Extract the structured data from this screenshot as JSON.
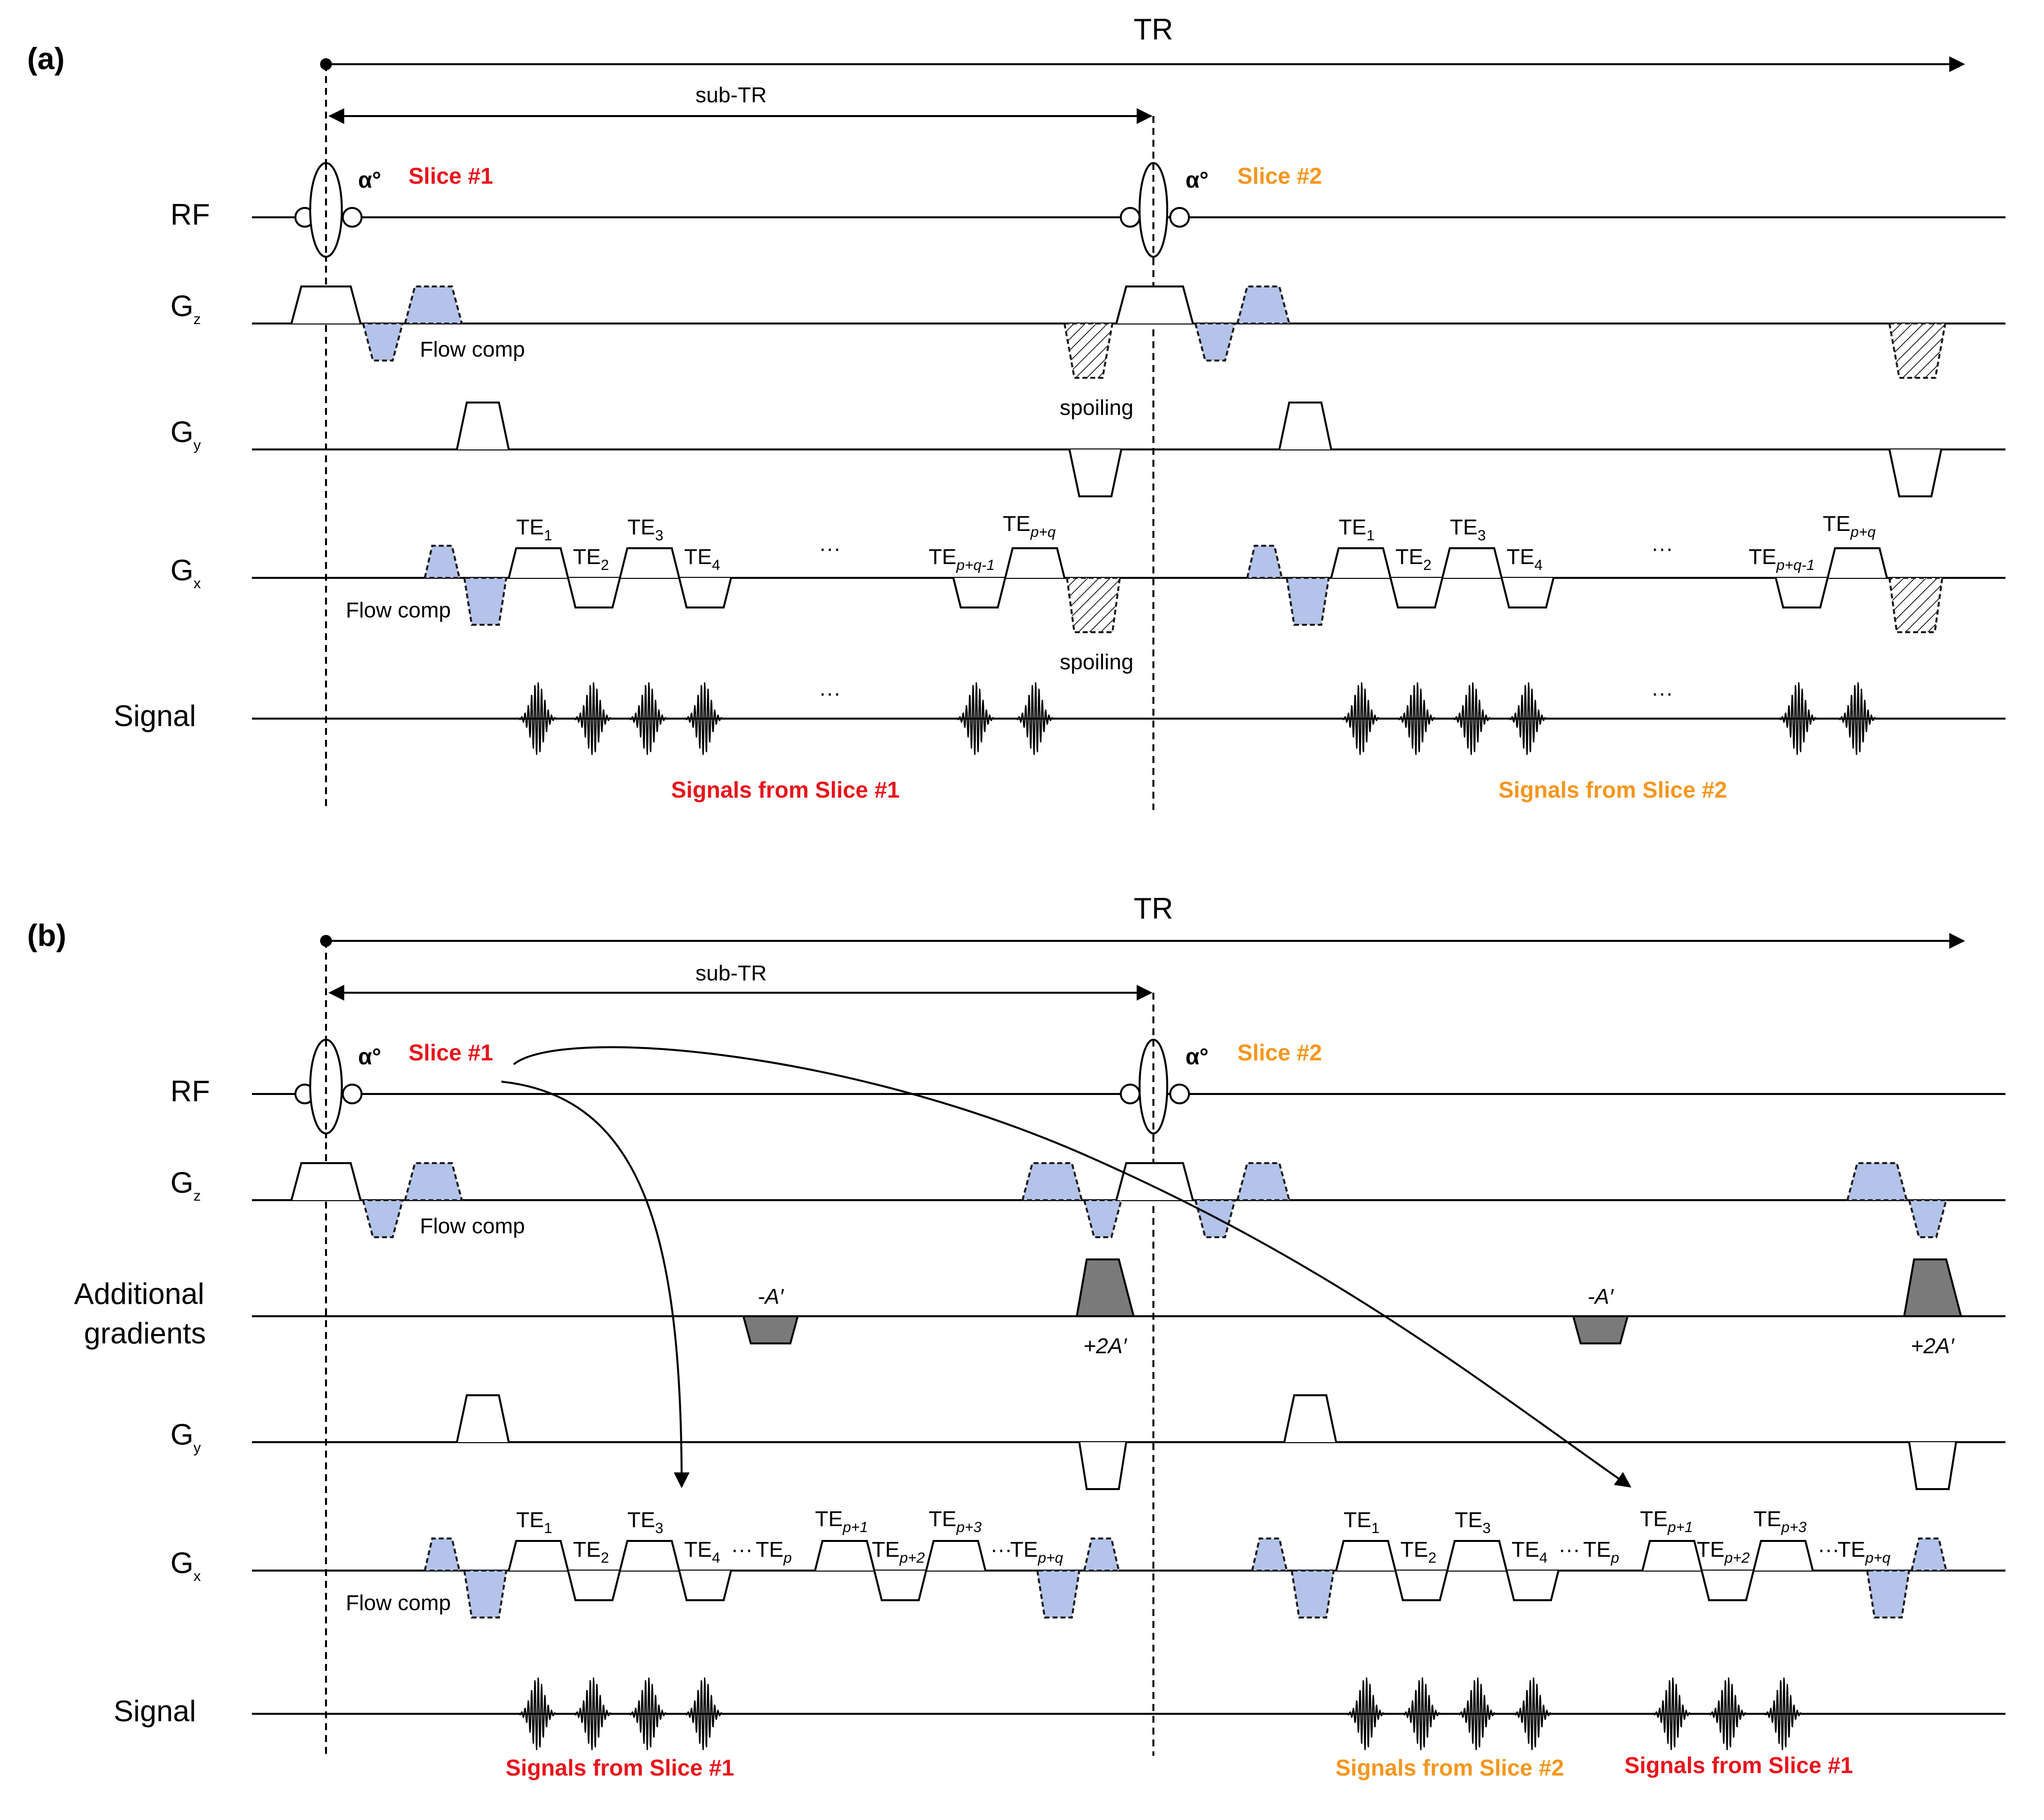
{
  "panels": [
    {
      "id": "a",
      "label": "(a)",
      "tr_label": "TR",
      "subtr_label": "sub-TR",
      "row_labels": {
        "rf": "RF",
        "gz": "G",
        "gz_sub": "z",
        "gy": "G",
        "gy_sub": "y",
        "gx": "G",
        "gx_sub": "x",
        "signal": "Signal"
      },
      "flip_angle": "α°",
      "slice1": "Slice #1",
      "slice2": "Slice #2",
      "flow_comp": "Flow comp",
      "spoiling": "spoiling",
      "ellipsis": "···",
      "signals_slice1": "Signals from Slice #1",
      "signals_slice2": "Signals from Slice #2",
      "te_labels": [
        {
          "base": "TE",
          "sub": "1"
        },
        {
          "base": "TE",
          "sub": "2"
        },
        {
          "base": "TE",
          "sub": "3"
        },
        {
          "base": "TE",
          "sub": "4"
        },
        {
          "base": "TE",
          "sub": "p+q-1"
        },
        {
          "base": "TE",
          "sub": "p+q"
        }
      ]
    },
    {
      "id": "b",
      "label": "(b)",
      "tr_label": "TR",
      "subtr_label": "sub-TR",
      "row_labels": {
        "rf": "RF",
        "gz": "G",
        "gz_sub": "z",
        "add1": "Additional",
        "add2": "gradients",
        "gy": "G",
        "gy_sub": "y",
        "gx": "G",
        "gx_sub": "x",
        "signal": "Signal"
      },
      "flip_angle": "α°",
      "slice1": "Slice #1",
      "slice2": "Slice #2",
      "flow_comp": "Flow comp",
      "minus_a": "-A′",
      "plus_2a": "+2A′",
      "ellipsis": "···",
      "signals_slice1": "Signals from Slice #1",
      "signals_slice2": "Signals from Slice #2",
      "signals_slice1_right": "Signals from Slice #1",
      "te_labels": [
        {
          "base": "TE",
          "sub": "1"
        },
        {
          "base": "TE",
          "sub": "2"
        },
        {
          "base": "TE",
          "sub": "3"
        },
        {
          "base": "TE",
          "sub": "4"
        },
        {
          "base": "TE",
          "sub": "p"
        },
        {
          "base": "TE",
          "sub": "p+1"
        },
        {
          "base": "TE",
          "sub": "p+2"
        },
        {
          "base": "TE",
          "sub": "p+3"
        },
        {
          "base": "TE",
          "sub": "p+q"
        }
      ]
    }
  ],
  "colors": {
    "slice1": "#e8141c",
    "slice2": "#f5961e",
    "flow_comp_fill": "#b3c3e9",
    "additional_gradient_fill": "#7a7a7a"
  }
}
